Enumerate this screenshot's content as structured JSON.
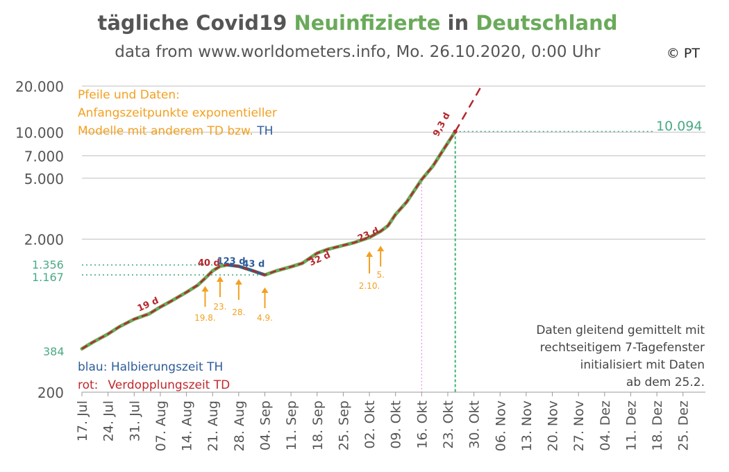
{
  "title": {
    "part1": "tägliche Covid19 ",
    "part2": "Neuinfizierte",
    "part3": " in ",
    "part4": "Deutschland"
  },
  "subtitle": "data from www.worldometers.info, Mo. 26.10.2020, 0:00 Uhr",
  "copyright": "© PT",
  "annotation_orange": {
    "line1": "Pfeile und Daten:",
    "line2": "Anfangszeitpunkte exponentieller",
    "line3a": "Modelle mit anderem TD bzw. ",
    "line3b": "TH"
  },
  "legend": {
    "blue_label": "blau:",
    "blue_text": "Halbierungszeit TH",
    "red_label": "rot:",
    "red_text": "Verdopplungszeit TD"
  },
  "note_right": {
    "line1": "Daten gleitend gemittelt mit",
    "line2": "rechtseitigem 7-Tagefenster",
    "line3": "initialisiert mit Daten",
    "line4": "ab dem 25.2."
  },
  "value_labels": {
    "last": "10.094",
    "v1356": "1.356",
    "v1167": "1.167",
    "v384": "384"
  },
  "colors": {
    "green": "#6aaa5a",
    "red_dash": "#b5272c",
    "blue": "#2e5c99",
    "orange": "#f2a020",
    "teal": "#4aaa84",
    "grid": "#bfbfbf"
  },
  "chart_data": {
    "type": "line",
    "y_scale": "log",
    "ylim": [
      200,
      20000
    ],
    "y_ticks": [
      "20.000",
      "10.000",
      "7.000",
      "5.000",
      "2.000",
      "200"
    ],
    "y_tick_values": [
      20000,
      10000,
      7000,
      5000,
      2000,
      200
    ],
    "x_ticks": [
      "17. Jul",
      "24. Jul",
      "31. Jul",
      "07. Aug",
      "14. Aug",
      "21. Aug",
      "28. Aug",
      "04. Sep",
      "11. Sep",
      "18. Sep",
      "25. Sep",
      "02. Okt",
      "09. Okt",
      "16. Okt",
      "23. Okt",
      "30. Okt",
      "06. Nov",
      "13. Nov",
      "20. Nov",
      "27. Nov",
      "04. Dez",
      "11. Dez",
      "18. Dez",
      "25. Dez"
    ],
    "x_tick_dates": [
      "2020-07-17",
      "2020-07-24",
      "2020-07-31",
      "2020-08-07",
      "2020-08-14",
      "2020-08-21",
      "2020-08-28",
      "2020-09-04",
      "2020-09-11",
      "2020-09-18",
      "2020-09-25",
      "2020-10-02",
      "2020-10-09",
      "2020-10-16",
      "2020-10-23",
      "2020-10-30",
      "2020-11-06",
      "2020-11-13",
      "2020-11-20",
      "2020-11-27",
      "2020-12-04",
      "2020-12-11",
      "2020-12-18",
      "2020-12-25"
    ],
    "grid": true,
    "series_data": {
      "x": [
        "2020-07-17",
        "2020-07-20",
        "2020-07-24",
        "2020-07-27",
        "2020-07-31",
        "2020-08-04",
        "2020-08-07",
        "2020-08-10",
        "2020-08-14",
        "2020-08-17",
        "2020-08-19",
        "2020-08-21",
        "2020-08-23",
        "2020-08-25",
        "2020-08-28",
        "2020-08-31",
        "2020-09-03",
        "2020-09-04",
        "2020-09-07",
        "2020-09-11",
        "2020-09-14",
        "2020-09-18",
        "2020-09-21",
        "2020-09-25",
        "2020-09-28",
        "2020-10-02",
        "2020-10-05",
        "2020-10-07",
        "2020-10-09",
        "2020-10-12",
        "2020-10-16",
        "2020-10-19",
        "2020-10-22",
        "2020-10-25"
      ],
      "y": [
        384,
        425,
        480,
        535,
        600,
        650,
        720,
        790,
        900,
        1000,
        1110,
        1240,
        1330,
        1356,
        1330,
        1260,
        1190,
        1167,
        1240,
        1320,
        1390,
        1620,
        1720,
        1820,
        1900,
        2050,
        2250,
        2450,
        2900,
        3500,
        4900,
        6000,
        7800,
        10094
      ]
    },
    "extrapolation": {
      "label": "9,3 d",
      "x": [
        "2020-10-25",
        "2020-11-01"
      ],
      "y": [
        10094,
        20000
      ]
    },
    "annotations": [
      {
        "text": "19 d",
        "color": "red",
        "x": "2020-08-04",
        "y": 720
      },
      {
        "text": "40 d",
        "color": "red",
        "x": "2020-08-20",
        "y": 1340
      },
      {
        "text": "123 d",
        "color": "blue",
        "x": "2020-08-26",
        "y": 1370
      },
      {
        "text": "43 d",
        "color": "blue",
        "x": "2020-09-01",
        "y": 1320
      },
      {
        "text": "32 d",
        "color": "red",
        "x": "2020-09-19",
        "y": 1430
      },
      {
        "text": "23 d",
        "color": "red",
        "x": "2020-10-02",
        "y": 2060
      },
      {
        "text": "9,3 d",
        "color": "red",
        "x": "2020-10-22",
        "y": 11000
      }
    ],
    "arrows": [
      {
        "label": "19.8.",
        "x": "2020-08-19"
      },
      {
        "label": "23.",
        "x": "2020-08-23"
      },
      {
        "label": "28.",
        "x": "2020-08-28"
      },
      {
        "label": "4.9.",
        "x": "2020-09-04"
      },
      {
        "label": "2.10.",
        "x": "2020-10-02"
      },
      {
        "label": "5.",
        "x": "2020-10-05"
      }
    ],
    "reference_lines": [
      {
        "type": "horizontal",
        "y": 1356,
        "label": "1.356"
      },
      {
        "type": "horizontal",
        "y": 1167,
        "label": "1.167"
      },
      {
        "type": "horizontal",
        "y": 10094,
        "label": "10.094"
      },
      {
        "type": "vertical",
        "x": "2020-10-16"
      },
      {
        "type": "vertical",
        "x": "2020-10-25"
      }
    ]
  }
}
